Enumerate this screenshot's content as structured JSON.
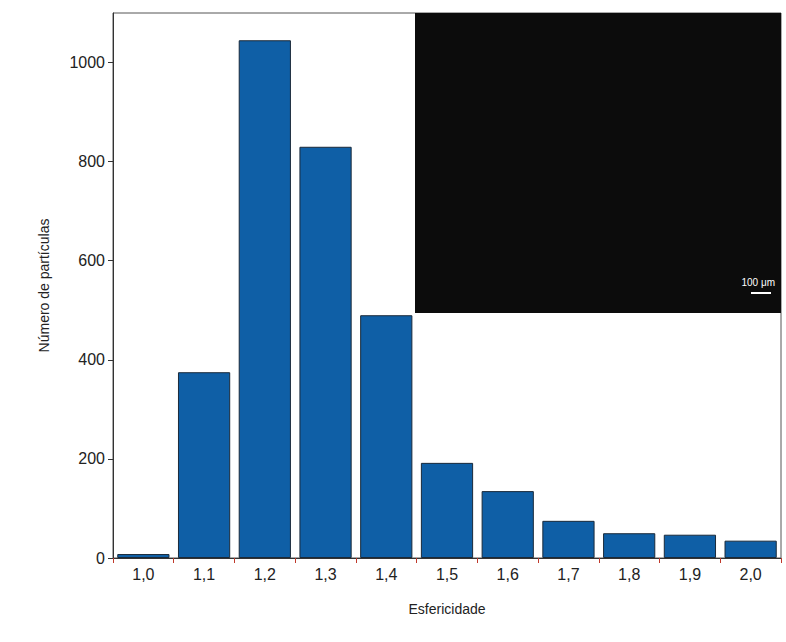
{
  "chart_data": {
    "type": "bar",
    "x_label": "Esfericidade",
    "y_label": "Número de partículas",
    "categories": [
      "1,0",
      "1,1",
      "1,2",
      "1,3",
      "1,4",
      "1,5",
      "1,6",
      "1,7",
      "1,8",
      "1,9",
      "2,0"
    ],
    "values": [
      8,
      375,
      1045,
      830,
      490,
      192,
      135,
      75,
      50,
      47,
      35
    ],
    "color": "#0f5fa6",
    "ylim": [
      0,
      1100
    ],
    "yticks": [
      0,
      200,
      400,
      600,
      800,
      1000
    ],
    "grid": false,
    "annotations": [
      {
        "text": "100 μm"
      }
    ]
  }
}
